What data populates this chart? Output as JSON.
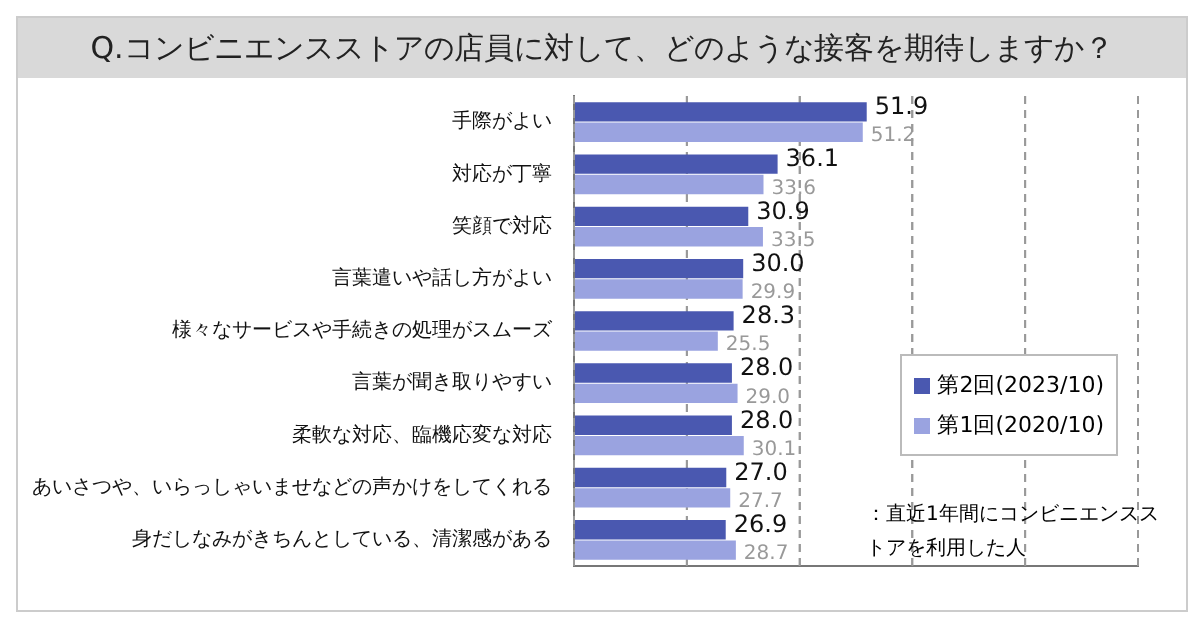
{
  "chart_data": {
    "type": "bar",
    "orientation": "horizontal",
    "title": "Q.コンビニエンスストアの店員に対して、どのような接客を期待しますか？",
    "categories": [
      "手際がよい",
      "対応が丁寧",
      "笑顔で対応",
      "言葉遣いや話し方がよい",
      "様々なサービスや手続きの処理がスムーズ",
      "言葉が聞き取りやすい",
      "柔軟な対応、臨機応変な対応",
      "あいさつや、いらっしゃいませなどの声かけをしてくれる",
      "身だしなみがきちんとしている、清潔感がある"
    ],
    "series": [
      {
        "name": "第2回(2023/10)",
        "color": "#4a58b0",
        "values": [
          51.9,
          36.1,
          30.9,
          30.0,
          28.3,
          28.0,
          28.0,
          27.0,
          26.9
        ],
        "value_labels": [
          "51.9",
          "36.1",
          "30.9",
          "30.0",
          "28.3",
          "28.0",
          "28.0",
          "27.0",
          "26.9"
        ]
      },
      {
        "name": "第1回(2020/10)",
        "color": "#9aa3e0",
        "values": [
          51.2,
          33.6,
          33.5,
          29.9,
          25.5,
          29.0,
          30.1,
          27.7,
          28.7
        ],
        "value_labels": [
          "51.2",
          "33.6",
          "33.5",
          "29.9",
          "25.5",
          "29.0",
          "30.1",
          "27.7",
          "28.7"
        ]
      }
    ],
    "xlim": [
      0,
      100
    ],
    "xticks": [
      {
        "value": 0,
        "label": null
      },
      {
        "value": 20,
        "label": null
      },
      {
        "value": 40,
        "label": null
      },
      {
        "value": 60,
        "label": null
      },
      {
        "value": 80,
        "label": null
      },
      {
        "value": 100,
        "label": null
      }
    ],
    "tick_labels": "y",
    "grid": "x",
    "legend": "right",
    "annotations": [
      "：直近1年間にコンビニエンスストアを利用した人"
    ]
  }
}
